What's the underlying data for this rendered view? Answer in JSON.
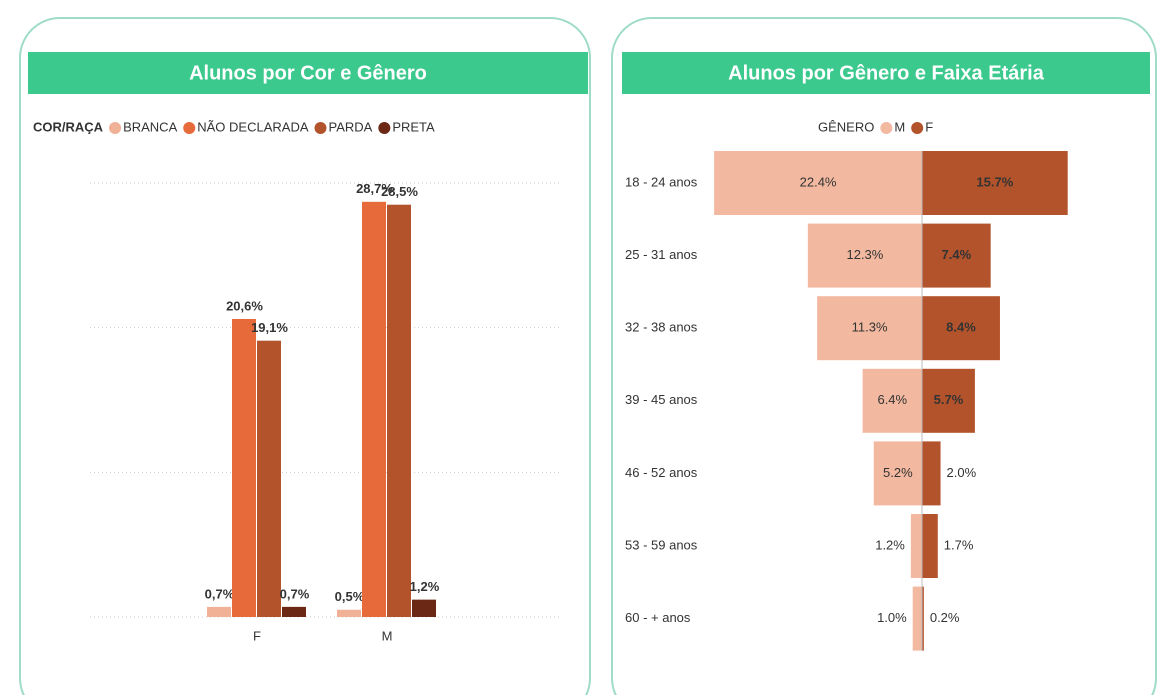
{
  "chart_data": [
    {
      "type": "bar",
      "title": "Alunos por Cor e Gênero",
      "legend_title": "COR/RAÇA",
      "categories": [
        "F",
        "M"
      ],
      "series": [
        {
          "name": "BRANCA",
          "color": "#f0b196",
          "values": [
            0.7,
            0.5
          ],
          "value_labels": [
            "0,7%",
            "0,5%"
          ]
        },
        {
          "name": "NÃO DECLARADA",
          "color": "#e66a3a",
          "values": [
            20.6,
            28.7
          ],
          "value_labels": [
            "20,6%",
            "28,7%"
          ]
        },
        {
          "name": "PARDA",
          "color": "#b3532b",
          "values": [
            19.1,
            28.5
          ],
          "value_labels": [
            "19,1%",
            "28,5%"
          ]
        },
        {
          "name": "PRETA",
          "color": "#6b2915",
          "values": [
            0.7,
            1.2
          ],
          "value_labels": [
            "0,7%",
            "1,2%"
          ]
        }
      ],
      "ylim": [
        0,
        30
      ],
      "yticks": [
        0,
        10,
        20,
        30
      ],
      "grid": true
    },
    {
      "type": "butterfly",
      "title": "Alunos por Gênero e Faixa Etária",
      "legend_title": "GÊNERO",
      "categories": [
        "18 - 24 anos",
        "25 - 31 anos",
        "32 - 38 anos",
        "39 - 45 anos",
        "46 - 52 anos",
        "53 - 59 anos",
        "60 - + anos"
      ],
      "series": [
        {
          "name": "M",
          "color": "#f2b9a0",
          "values": [
            22.4,
            12.3,
            11.3,
            6.4,
            5.2,
            1.2,
            1.0
          ],
          "value_labels": [
            "22.4%",
            "12.3%",
            "11.3%",
            "6.4%",
            "5.2%",
            "1.2%",
            "1.0%"
          ]
        },
        {
          "name": "F",
          "color": "#b3532b",
          "values": [
            15.7,
            7.4,
            8.4,
            5.7,
            2.0,
            1.7,
            0.2
          ],
          "value_labels": [
            "15.7%",
            "7.4%",
            "8.4%",
            "5.7%",
            "2.0%",
            "1.7%",
            "0.2%"
          ]
        }
      ],
      "xlim": [
        0,
        25
      ]
    }
  ]
}
